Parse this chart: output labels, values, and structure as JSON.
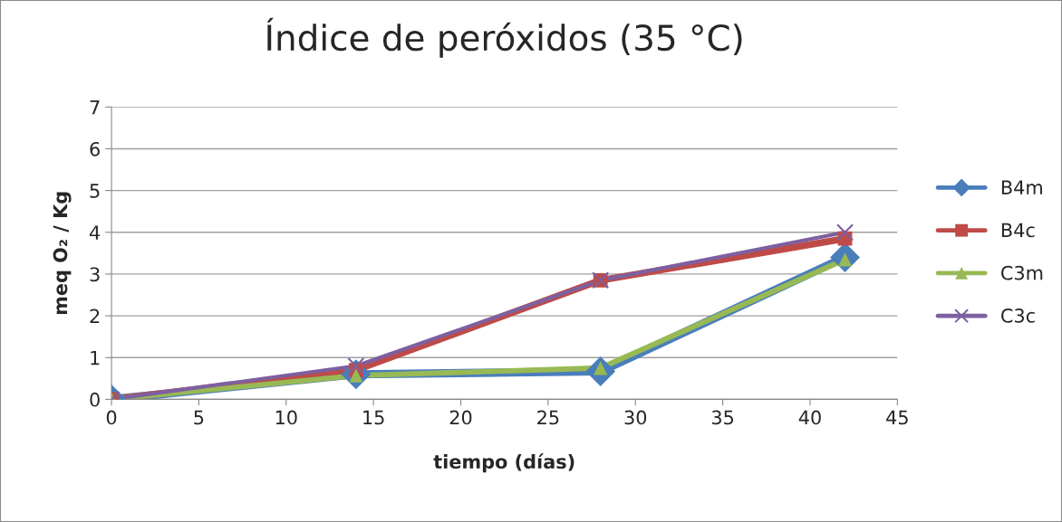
{
  "chart_data": {
    "type": "line",
    "title": "Índice de peróxidos (35 °C)",
    "xlabel": "tiempo (días)",
    "ylabel": "meq O₂ / Kg",
    "x": [
      0,
      14,
      28,
      42
    ],
    "series": [
      {
        "name": "B4m",
        "color": "#4a7ebb",
        "marker": "diamond",
        "values": [
          0,
          0.6,
          0.67,
          3.4
        ]
      },
      {
        "name": "B4c",
        "color": "#be4b48",
        "marker": "square",
        "values": [
          0,
          0.7,
          2.85,
          3.85
        ]
      },
      {
        "name": "C3m",
        "color": "#98b954",
        "marker": "triangle",
        "values": [
          0,
          0.57,
          0.75,
          3.35
        ]
      },
      {
        "name": "C3c",
        "color": "#7d60a0",
        "marker": "cross",
        "values": [
          0,
          0.8,
          2.85,
          4.0
        ]
      }
    ],
    "xlim": [
      0,
      45
    ],
    "xticks": [
      0,
      5,
      10,
      15,
      20,
      25,
      30,
      35,
      40,
      45
    ],
    "ylim": [
      0,
      7
    ],
    "yticks": [
      0,
      1,
      2,
      3,
      4,
      5,
      6,
      7
    ],
    "grid": "y",
    "legend": "right",
    "line_style": "solid"
  }
}
